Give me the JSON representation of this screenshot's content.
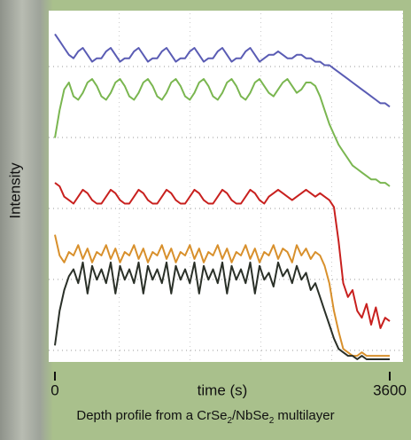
{
  "chart_data": {
    "type": "line",
    "y_label": "Intensity",
    "x_label": "time (s)",
    "caption": [
      "Depth profile from a CrSe",
      "2",
      "/NbSe",
      "2",
      " multilayer"
    ],
    "xlim": [
      0,
      3600
    ],
    "xticks": [
      0,
      3600
    ],
    "ylim": [
      0,
      100
    ],
    "x": [
      0,
      50,
      100,
      150,
      200,
      250,
      300,
      350,
      400,
      450,
      500,
      550,
      600,
      650,
      700,
      750,
      800,
      850,
      900,
      950,
      1000,
      1050,
      1100,
      1150,
      1200,
      1250,
      1300,
      1350,
      1400,
      1450,
      1500,
      1550,
      1600,
      1650,
      1700,
      1750,
      1800,
      1850,
      1900,
      1950,
      2000,
      2050,
      2100,
      2150,
      2200,
      2250,
      2300,
      2350,
      2400,
      2450,
      2500,
      2550,
      2600,
      2650,
      2700,
      2750,
      2800,
      2850,
      2900,
      2950,
      3000,
      3050,
      3100,
      3150,
      3200,
      3250,
      3300,
      3350,
      3400,
      3450,
      3500,
      3550,
      3600
    ],
    "series": [
      {
        "color": "#5a5cb4",
        "values": [
          94,
          92,
          90,
          88,
          87,
          89,
          90,
          88,
          86,
          87,
          87,
          89,
          90,
          88,
          86,
          87,
          87,
          89,
          90,
          88,
          86,
          87,
          87,
          89,
          90,
          88,
          86,
          87,
          87,
          89,
          90,
          88,
          86,
          87,
          87,
          89,
          90,
          88,
          86,
          87,
          87,
          89,
          90,
          88,
          86,
          87,
          88,
          88,
          89,
          88,
          87,
          87,
          88,
          88,
          87,
          87,
          86,
          86,
          85,
          85,
          84,
          83,
          82,
          81,
          80,
          79,
          78,
          77,
          76,
          75,
          74,
          74,
          73
        ]
      },
      {
        "color": "#7ab650",
        "values": [
          64,
          72,
          78,
          80,
          76,
          75,
          77,
          80,
          81,
          79,
          76,
          75,
          77,
          80,
          81,
          79,
          76,
          75,
          77,
          80,
          81,
          79,
          76,
          75,
          77,
          80,
          81,
          79,
          76,
          75,
          77,
          80,
          81,
          79,
          76,
          75,
          77,
          80,
          81,
          79,
          76,
          75,
          77,
          80,
          81,
          79,
          77,
          76,
          78,
          80,
          81,
          79,
          77,
          78,
          80,
          80,
          79,
          76,
          72,
          68,
          65,
          62,
          60,
          58,
          56,
          55,
          54,
          53,
          52,
          52,
          51,
          51,
          50
        ]
      },
      {
        "color": "#c8201e",
        "values": [
          51,
          50,
          47,
          46,
          45,
          47,
          49,
          48,
          46,
          45,
          45,
          47,
          49,
          48,
          46,
          45,
          45,
          47,
          49,
          48,
          46,
          45,
          45,
          47,
          49,
          48,
          46,
          45,
          45,
          47,
          49,
          48,
          46,
          45,
          45,
          47,
          49,
          48,
          46,
          45,
          45,
          47,
          49,
          48,
          46,
          45,
          47,
          48,
          49,
          48,
          47,
          46,
          47,
          48,
          49,
          48,
          47,
          48,
          47,
          46,
          44,
          34,
          22,
          18,
          20,
          14,
          12,
          16,
          10,
          15,
          9,
          12,
          11
        ]
      },
      {
        "color": "#d8902c",
        "values": [
          36,
          30,
          28,
          31,
          30,
          33,
          29,
          32,
          28,
          31,
          30,
          33,
          29,
          32,
          28,
          31,
          30,
          33,
          29,
          32,
          28,
          31,
          30,
          33,
          29,
          32,
          28,
          31,
          30,
          33,
          29,
          32,
          28,
          31,
          30,
          33,
          29,
          32,
          28,
          31,
          30,
          33,
          29,
          32,
          28,
          31,
          30,
          33,
          29,
          32,
          31,
          28,
          33,
          30,
          32,
          29,
          31,
          30,
          27,
          22,
          14,
          8,
          3,
          2,
          1,
          1,
          2,
          1,
          1,
          1,
          1,
          1,
          1
        ]
      },
      {
        "color": "#2a3028",
        "values": [
          4,
          14,
          20,
          24,
          26,
          22,
          28,
          19,
          27,
          23,
          26,
          22,
          28,
          19,
          27,
          23,
          26,
          22,
          28,
          19,
          27,
          23,
          26,
          22,
          28,
          19,
          27,
          23,
          26,
          22,
          28,
          19,
          27,
          23,
          26,
          22,
          28,
          19,
          27,
          23,
          26,
          22,
          28,
          19,
          27,
          23,
          25,
          21,
          28,
          24,
          26,
          22,
          27,
          23,
          25,
          20,
          22,
          18,
          14,
          10,
          6,
          3,
          2,
          1,
          1,
          0,
          1,
          0,
          0,
          0,
          0,
          0,
          0
        ]
      }
    ]
  }
}
